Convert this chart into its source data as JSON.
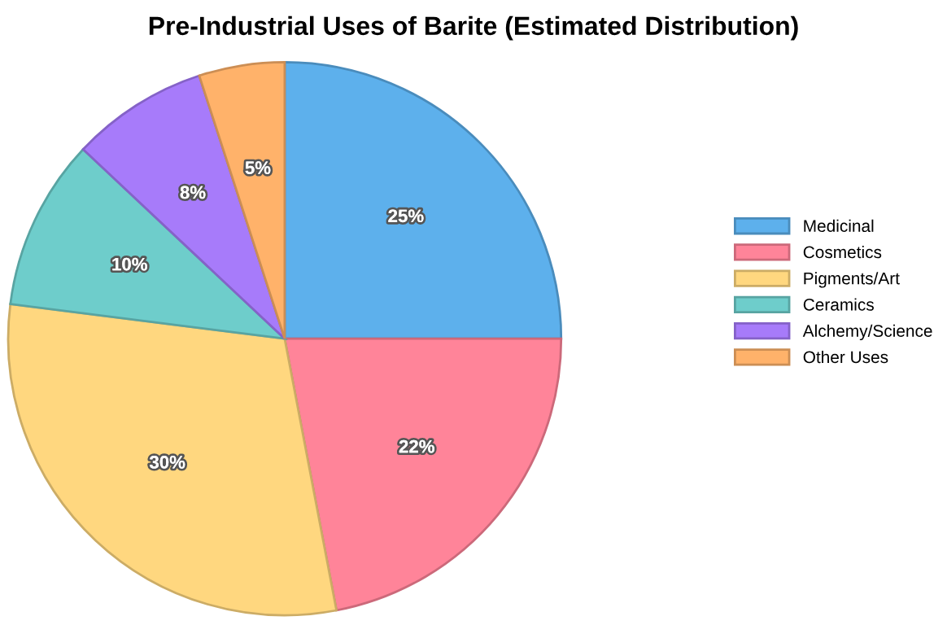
{
  "chart_data": {
    "type": "pie",
    "title": "Pre-Industrial Uses of Barite (Estimated Distribution)",
    "categories": [
      "Medicinal",
      "Cosmetics",
      "Pigments/Art",
      "Ceramics",
      "Alchemy/Science",
      "Other Uses"
    ],
    "values": [
      25,
      22,
      30,
      10,
      8,
      5
    ],
    "colors": [
      "#5db0ec",
      "#ff8499",
      "#ffd77f",
      "#6ecdcb",
      "#a77bfa",
      "#ffb26a"
    ],
    "value_labels": [
      "25%",
      "22%",
      "30%",
      "10%",
      "8%",
      "5%"
    ],
    "legend": "right"
  }
}
